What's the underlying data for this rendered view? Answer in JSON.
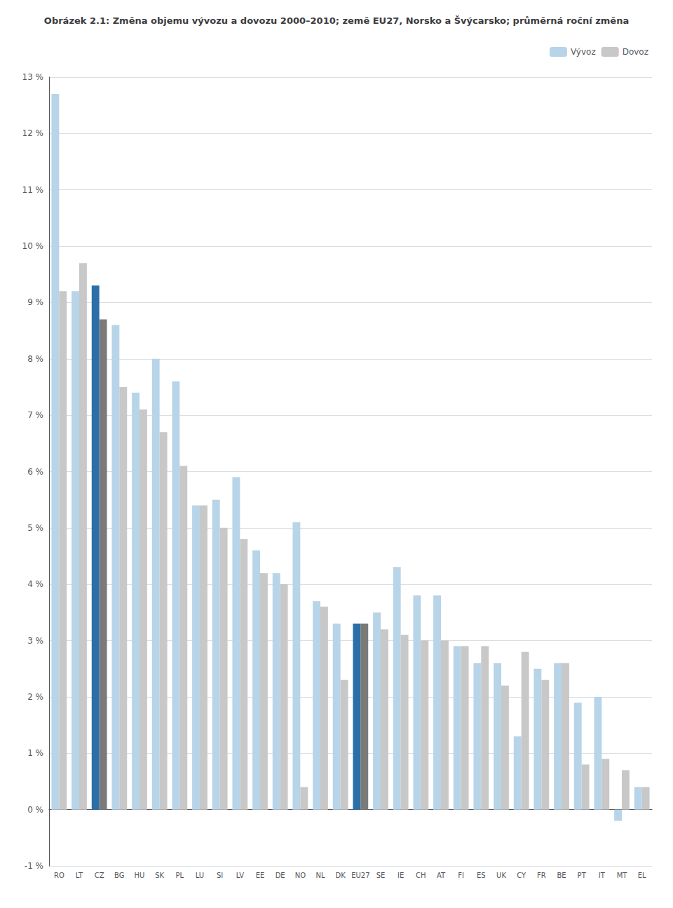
{
  "chart_data": {
    "type": "bar",
    "title": "Obrázek 2.1: Změna objemu vývozu a dovozu 2000–2010; země EU27, Norsko a Švýcarsko; průměrná roční změna",
    "categories": [
      "RO",
      "LT",
      "CZ",
      "BG",
      "HU",
      "SK",
      "PL",
      "LU",
      "SI",
      "LV",
      "EE",
      "DE",
      "NO",
      "NL",
      "DK",
      "EU27",
      "SE",
      "IE",
      "CH",
      "AT",
      "FI",
      "ES",
      "UK",
      "CY",
      "FR",
      "BE",
      "PT",
      "IT",
      "MT",
      "EL"
    ],
    "series": [
      {
        "name": "Vývoz",
        "color": "#b8d4e8",
        "colors": [
          "#b8d4e8",
          "#b8d4e8",
          "#2a6fa8",
          "#b8d4e8",
          "#b8d4e8",
          "#b8d4e8",
          "#b8d4e8",
          "#b8d4e8",
          "#b8d4e8",
          "#b8d4e8",
          "#b8d4e8",
          "#b8d4e8",
          "#b8d4e8",
          "#b8d4e8",
          "#b8d4e8",
          "#2a6fa8",
          "#b8d4e8",
          "#b8d4e8",
          "#b8d4e8",
          "#b8d4e8",
          "#b8d4e8",
          "#b8d4e8",
          "#b8d4e8",
          "#b8d4e8",
          "#b8d4e8",
          "#b8d4e8",
          "#b8d4e8",
          "#b8d4e8",
          "#b8d4e8",
          "#b8d4e8"
        ],
        "values": [
          12.7,
          9.2,
          9.3,
          8.6,
          7.4,
          8.0,
          7.6,
          5.4,
          5.5,
          5.9,
          4.6,
          4.2,
          5.1,
          3.7,
          3.3,
          3.3,
          3.5,
          4.3,
          3.8,
          3.8,
          2.9,
          2.6,
          2.6,
          1.3,
          2.5,
          2.6,
          1.9,
          2.0,
          -0.2,
          0.4
        ]
      },
      {
        "name": "Dovoz",
        "color": "#c8c8c8",
        "colors": [
          "#c8c8c8",
          "#c8c8c8",
          "#7a7a7a",
          "#c8c8c8",
          "#c8c8c8",
          "#c8c8c8",
          "#c8c8c8",
          "#c8c8c8",
          "#c8c8c8",
          "#c8c8c8",
          "#c8c8c8",
          "#c8c8c8",
          "#c8c8c8",
          "#c8c8c8",
          "#c8c8c8",
          "#7a7a7a",
          "#c8c8c8",
          "#c8c8c8",
          "#c8c8c8",
          "#c8c8c8",
          "#c8c8c8",
          "#c8c8c8",
          "#c8c8c8",
          "#c8c8c8",
          "#c8c8c8",
          "#c8c8c8",
          "#c8c8c8",
          "#c8c8c8",
          "#c8c8c8",
          "#c8c8c8"
        ],
        "values": [
          9.2,
          9.7,
          8.7,
          7.5,
          7.1,
          6.7,
          6.1,
          5.4,
          5.0,
          4.8,
          4.2,
          4.0,
          0.4,
          3.6,
          2.3,
          3.3,
          3.2,
          3.1,
          3.0,
          3.0,
          2.9,
          2.9,
          2.2,
          2.8,
          2.3,
          2.6,
          0.8,
          0.9,
          0.7,
          0.4
        ]
      }
    ],
    "ylim": [
      -1,
      13
    ],
    "yticks": [
      {
        "value": -1,
        "label": "-1 %"
      },
      {
        "value": 0,
        "label": "0 %"
      },
      {
        "value": 1,
        "label": "1 %"
      },
      {
        "value": 2,
        "label": "2 %"
      },
      {
        "value": 3,
        "label": "3 %"
      },
      {
        "value": 4,
        "label": "4 %"
      },
      {
        "value": 5,
        "label": "5 %"
      },
      {
        "value": 6,
        "label": "6 %"
      },
      {
        "value": 7,
        "label": "7 %"
      },
      {
        "value": 8,
        "label": "8 %"
      },
      {
        "value": 9,
        "label": "9 %"
      },
      {
        "value": 10,
        "label": "10 %"
      },
      {
        "value": 11,
        "label": "11 %"
      },
      {
        "value": 12,
        "label": "12 %"
      },
      {
        "value": 13,
        "label": "13 %"
      }
    ],
    "grid": true,
    "legend": "upper right"
  }
}
